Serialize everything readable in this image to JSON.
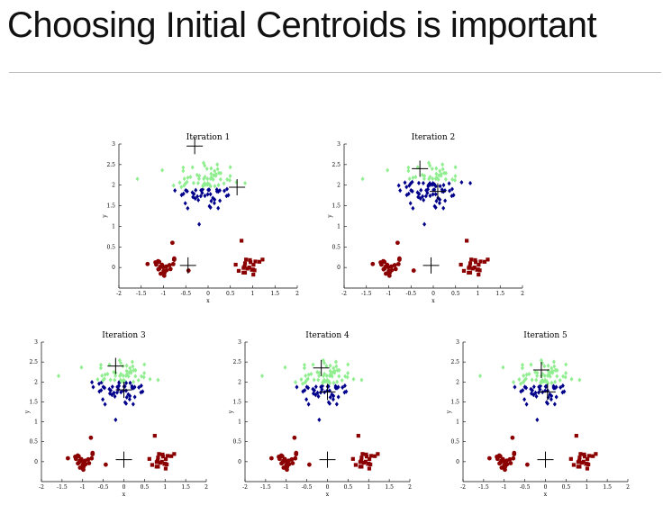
{
  "slide": {
    "title": "Choosing Initial Centroids is important"
  },
  "colors": {
    "cluster1": "#8b0000",
    "cluster2": "#00008b",
    "cluster3": "#90ee90",
    "centroid": "#000000"
  },
  "chart_data": [
    {
      "type": "scatter",
      "title": "Iteration 1",
      "xlabel": "x",
      "ylabel": "y",
      "xlim": [
        -2,
        2
      ],
      "ylim": [
        -0.5,
        3
      ],
      "xticks": [
        "-2",
        "-1.5",
        "-1",
        "-0.5",
        "0",
        "0.5",
        "1",
        "1.5",
        "2"
      ],
      "yticks": [
        "0",
        "0.5",
        "1",
        "1.5",
        "2",
        "2.5",
        "3"
      ],
      "centroids": [
        [
          -0.3,
          2.95
        ],
        [
          0.65,
          1.95
        ],
        [
          -0.45,
          0.05
        ]
      ],
      "assignment": {
        "split_y": 1.95
      }
    },
    {
      "type": "scatter",
      "title": "Iteration 2",
      "xlabel": "x",
      "ylabel": "y",
      "xlim": [
        -2,
        2
      ],
      "ylim": [
        -0.5,
        3
      ],
      "xticks": [
        "-2",
        "-1.5",
        "-1",
        "-0.5",
        "0",
        "0.5",
        "1",
        "1.5",
        "2"
      ],
      "yticks": [
        "0",
        "0.5",
        "1",
        "1.5",
        "2",
        "2.5",
        "3"
      ],
      "centroids": [
        [
          -0.3,
          2.4
        ],
        [
          0.1,
          1.85
        ],
        [
          -0.05,
          0.05
        ]
      ],
      "assignment": {
        "split_y": 2.1
      }
    },
    {
      "type": "scatter",
      "title": "Iteration 3",
      "xlabel": "x",
      "ylabel": "y",
      "xlim": [
        -2,
        2
      ],
      "ylim": [
        -0.5,
        3
      ],
      "xticks": [
        "-2",
        "-1.5",
        "-1",
        "-0.5",
        "0",
        "0.5",
        "1",
        "1.5",
        "2"
      ],
      "yticks": [
        "0",
        "0.5",
        "1",
        "1.5",
        "2",
        "2.5",
        "3"
      ],
      "centroids": [
        [
          -0.2,
          2.4
        ],
        [
          0.0,
          1.8
        ],
        [
          0.0,
          0.05
        ]
      ],
      "assignment": {
        "split_y": 2.0
      }
    },
    {
      "type": "scatter",
      "title": "Iteration 4",
      "xlabel": "x",
      "ylabel": "y",
      "xlim": [
        -2,
        2
      ],
      "ylim": [
        -0.5,
        3
      ],
      "xticks": [
        "-2",
        "-1.5",
        "-1",
        "-0.5",
        "0",
        "0.5",
        "1",
        "1.5",
        "2"
      ],
      "yticks": [
        "0",
        "0.5",
        "1",
        "1.5",
        "2",
        "2.5",
        "3"
      ],
      "centroids": [
        [
          -0.15,
          2.35
        ],
        [
          0.0,
          1.75
        ],
        [
          0.0,
          0.05
        ]
      ],
      "assignment": {
        "split_y": 1.95
      }
    },
    {
      "type": "scatter",
      "title": "Iteration 5",
      "xlabel": "x",
      "ylabel": "y",
      "xlim": [
        -2,
        2
      ],
      "ylim": [
        -0.5,
        3
      ],
      "xticks": [
        "-2",
        "-1.5",
        "-1",
        "-0.5",
        "0",
        "0.5",
        "1",
        "1.5",
        "2"
      ],
      "yticks": [
        "0",
        "0.5",
        "1",
        "1.5",
        "2",
        "2.5",
        "3"
      ],
      "centroids": [
        [
          -0.1,
          2.3
        ],
        [
          0.05,
          1.75
        ],
        [
          0.0,
          0.05
        ]
      ],
      "assignment": {
        "split_y": 1.95
      }
    }
  ]
}
